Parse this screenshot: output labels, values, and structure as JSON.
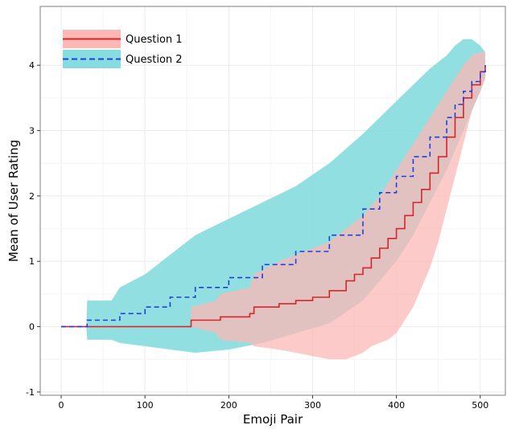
{
  "chart_data": {
    "type": "line",
    "title": "",
    "xlabel": "Emoji Pair",
    "ylabel": "Mean of User Rating",
    "xlim": [
      -25,
      530
    ],
    "ylim": [
      -1.05,
      4.9
    ],
    "x_ticks": [
      0,
      100,
      200,
      300,
      400,
      500
    ],
    "y_ticks": [
      -1,
      0,
      1,
      2,
      3,
      4
    ],
    "grid": true,
    "legend_position": "top-left",
    "colors": {
      "q1_line": "#d62728",
      "q1_ribbon": "#fbb8b6",
      "q2_line": "#1f3fe0",
      "q2_ribbon": "#86dcdf",
      "overlap": "#b3b9b7",
      "grid": "#ebebeb",
      "panel_border": "#7f7f7f"
    },
    "series": [
      {
        "name": "Question 1",
        "line_style": "solid",
        "x": [
          0,
          30,
          60,
          100,
          154,
          155,
          185,
          190,
          225,
          230,
          260,
          280,
          300,
          320,
          340,
          350,
          360,
          370,
          380,
          390,
          400,
          410,
          420,
          430,
          440,
          450,
          460,
          470,
          480,
          490,
          500,
          506
        ],
        "y": [
          0,
          0,
          0,
          0,
          0,
          0.1,
          0.1,
          0.15,
          0.2,
          0.3,
          0.35,
          0.4,
          0.45,
          0.55,
          0.7,
          0.8,
          0.9,
          1.05,
          1.2,
          1.35,
          1.5,
          1.7,
          1.9,
          2.1,
          2.35,
          2.6,
          2.9,
          3.2,
          3.5,
          3.7,
          3.9,
          4.0
        ],
        "ribbon_lower": [
          0,
          0,
          0,
          0,
          0,
          0,
          -0.1,
          -0.2,
          -0.25,
          -0.3,
          -0.35,
          -0.4,
          -0.45,
          -0.5,
          -0.5,
          -0.45,
          -0.4,
          -0.3,
          -0.25,
          -0.2,
          -0.1,
          0.1,
          0.3,
          0.6,
          0.9,
          1.3,
          1.8,
          2.3,
          2.8,
          3.3,
          3.6,
          3.8
        ],
        "ribbon_upper": [
          0,
          0,
          0,
          0,
          0,
          0.3,
          0.4,
          0.5,
          0.6,
          0.8,
          1.0,
          1.1,
          1.2,
          1.3,
          1.5,
          1.6,
          1.7,
          1.85,
          2.0,
          2.2,
          2.4,
          2.6,
          2.8,
          3.0,
          3.2,
          3.4,
          3.6,
          3.8,
          4.0,
          4.15,
          4.2,
          4.2
        ]
      },
      {
        "name": "Question 2",
        "line_style": "dashed",
        "x": [
          0,
          30,
          31,
          60,
          70,
          100,
          130,
          160,
          200,
          240,
          280,
          320,
          360,
          380,
          400,
          420,
          440,
          460,
          470,
          480,
          490,
          500,
          506
        ],
        "y": [
          0,
          0,
          0.1,
          0.1,
          0.2,
          0.3,
          0.45,
          0.6,
          0.75,
          0.95,
          1.15,
          1.4,
          1.8,
          2.05,
          2.3,
          2.6,
          2.9,
          3.2,
          3.4,
          3.6,
          3.75,
          3.9,
          4.0
        ],
        "ribbon_lower": [
          0,
          0,
          -0.2,
          -0.2,
          -0.25,
          -0.3,
          -0.35,
          -0.4,
          -0.35,
          -0.25,
          -0.1,
          0.05,
          0.4,
          0.7,
          1.0,
          1.4,
          1.9,
          2.4,
          2.7,
          3.0,
          3.3,
          3.6,
          3.8
        ],
        "ribbon_upper": [
          0,
          0,
          0.4,
          0.4,
          0.6,
          0.8,
          1.1,
          1.4,
          1.65,
          1.9,
          2.15,
          2.5,
          2.95,
          3.2,
          3.45,
          3.7,
          3.95,
          4.15,
          4.3,
          4.4,
          4.4,
          4.3,
          4.2
        ]
      }
    ]
  }
}
